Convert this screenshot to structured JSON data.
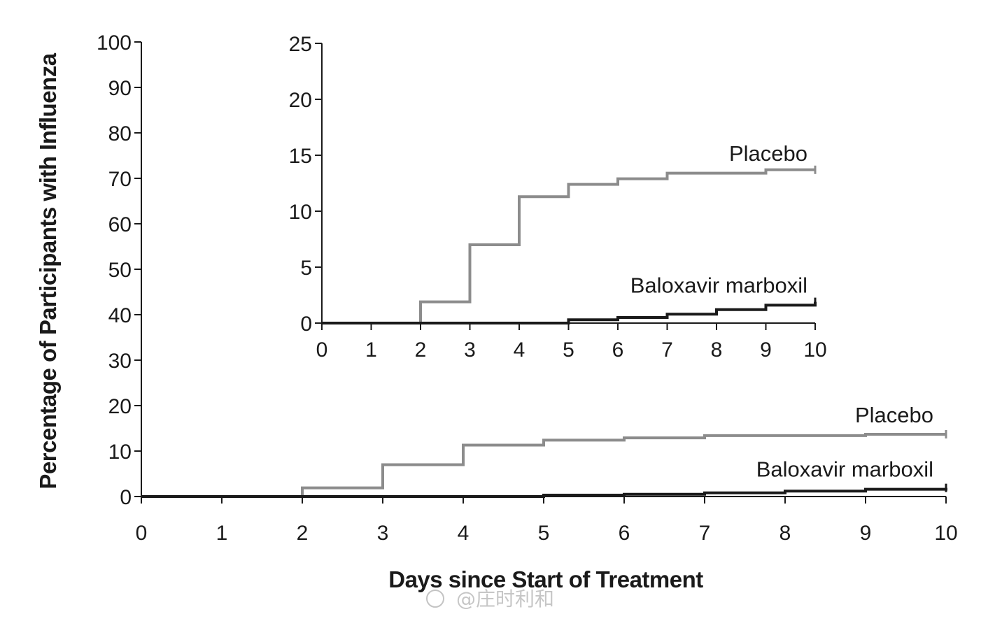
{
  "chart_data": [
    {
      "type": "line",
      "step": true,
      "title": "",
      "xlabel": "Days since Start of Treatment",
      "ylabel": "Percentage of Participants with Influenza",
      "xlim": [
        0,
        10
      ],
      "ylim": [
        0,
        100
      ],
      "xticks": [
        "0",
        "1",
        "2",
        "3",
        "4",
        "5",
        "6",
        "7",
        "8",
        "9",
        "10"
      ],
      "yticks": [
        "0",
        "10",
        "20",
        "30",
        "40",
        "50",
        "60",
        "70",
        "80",
        "90",
        "100"
      ],
      "grid": false,
      "series": [
        {
          "name": "Placebo",
          "color": "#8c8c8c",
          "x": [
            0,
            2,
            3,
            4,
            5,
            6,
            7,
            9,
            10
          ],
          "y": [
            0,
            1.9,
            7.0,
            11.3,
            12.4,
            12.9,
            13.4,
            13.7,
            13.7
          ]
        },
        {
          "name": "Baloxavir marboxil",
          "color": "#1a1a1a",
          "x": [
            0,
            5,
            6,
            7,
            8,
            9,
            10
          ],
          "y": [
            0,
            0.3,
            0.5,
            0.8,
            1.2,
            1.6,
            1.9
          ]
        }
      ]
    },
    {
      "type": "line",
      "step": true,
      "title": "",
      "xlabel": "",
      "ylabel": "",
      "xlim": [
        0,
        10
      ],
      "ylim": [
        0,
        25
      ],
      "xticks": [
        "0",
        "1",
        "2",
        "3",
        "4",
        "5",
        "6",
        "7",
        "8",
        "9",
        "10"
      ],
      "yticks": [
        "0",
        "5",
        "10",
        "15",
        "20",
        "25"
      ],
      "grid": false,
      "series": [
        {
          "name": "Placebo",
          "color": "#8c8c8c",
          "x": [
            0,
            2,
            3,
            4,
            5,
            6,
            7,
            9,
            10
          ],
          "y": [
            0,
            1.9,
            7.0,
            11.3,
            12.4,
            12.9,
            13.4,
            13.7,
            13.7
          ]
        },
        {
          "name": "Baloxavir marboxil",
          "color": "#1a1a1a",
          "x": [
            0,
            5,
            6,
            7,
            8,
            9,
            10
          ],
          "y": [
            0,
            0.3,
            0.5,
            0.8,
            1.2,
            1.6,
            1.9
          ]
        }
      ]
    }
  ],
  "watermark": "@庄时利和"
}
